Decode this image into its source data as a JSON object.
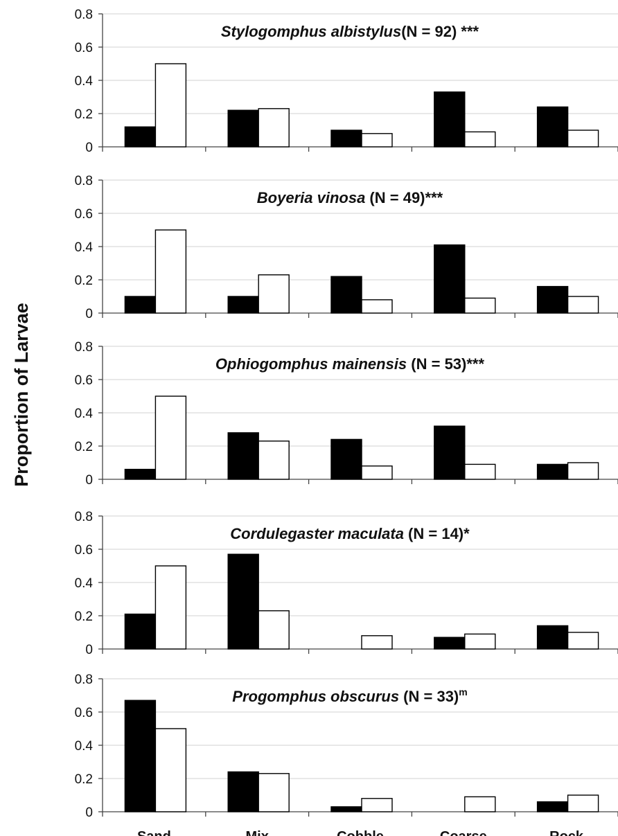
{
  "chart_data": {
    "type": "bar",
    "ylabel": "Proportion of Larvae",
    "categories": [
      "Sand",
      "Mix",
      "Cobble",
      "Coarse",
      "Rock"
    ],
    "ylim": [
      0,
      0.8
    ],
    "yticks": [
      "0",
      "0.2",
      "0.4",
      "0.6",
      "0.8"
    ],
    "grid": true,
    "legend": "none",
    "colors": {
      "filled": "#000000",
      "open": "#ffffff",
      "grid": "#d9d9d9"
    },
    "panels": [
      {
        "species": "Stylogomphus albistylus",
        "note": "(N = 92) ***",
        "sup": "",
        "series": [
          {
            "values": [
              0.12,
              0.22,
              0.1,
              0.33,
              0.24
            ]
          },
          {
            "values": [
              0.5,
              0.23,
              0.08,
              0.09,
              0.1
            ]
          }
        ]
      },
      {
        "species": "Boyeria vinosa",
        "note": " (N = 49)***",
        "sup": "",
        "series": [
          {
            "values": [
              0.1,
              0.1,
              0.22,
              0.41,
              0.16
            ]
          },
          {
            "values": [
              0.5,
              0.23,
              0.08,
              0.09,
              0.1
            ]
          }
        ]
      },
      {
        "species": "Ophiogomphus mainensis",
        "note": " (N = 53)***",
        "sup": "",
        "series": [
          {
            "values": [
              0.06,
              0.28,
              0.24,
              0.32,
              0.09
            ]
          },
          {
            "values": [
              0.5,
              0.23,
              0.08,
              0.09,
              0.1
            ]
          }
        ]
      },
      {
        "species": "Cordulegaster maculata",
        "note": " (N = 14)*",
        "sup": "",
        "series": [
          {
            "values": [
              0.21,
              0.57,
              0.0,
              0.07,
              0.14
            ]
          },
          {
            "values": [
              0.5,
              0.23,
              0.08,
              0.09,
              0.1
            ]
          }
        ]
      },
      {
        "species": "Progomphus obscurus",
        "note": " (N = 33)",
        "sup": "m",
        "series": [
          {
            "values": [
              0.67,
              0.24,
              0.03,
              0.0,
              0.06
            ]
          },
          {
            "values": [
              0.5,
              0.23,
              0.08,
              0.09,
              0.1
            ]
          }
        ]
      }
    ]
  }
}
